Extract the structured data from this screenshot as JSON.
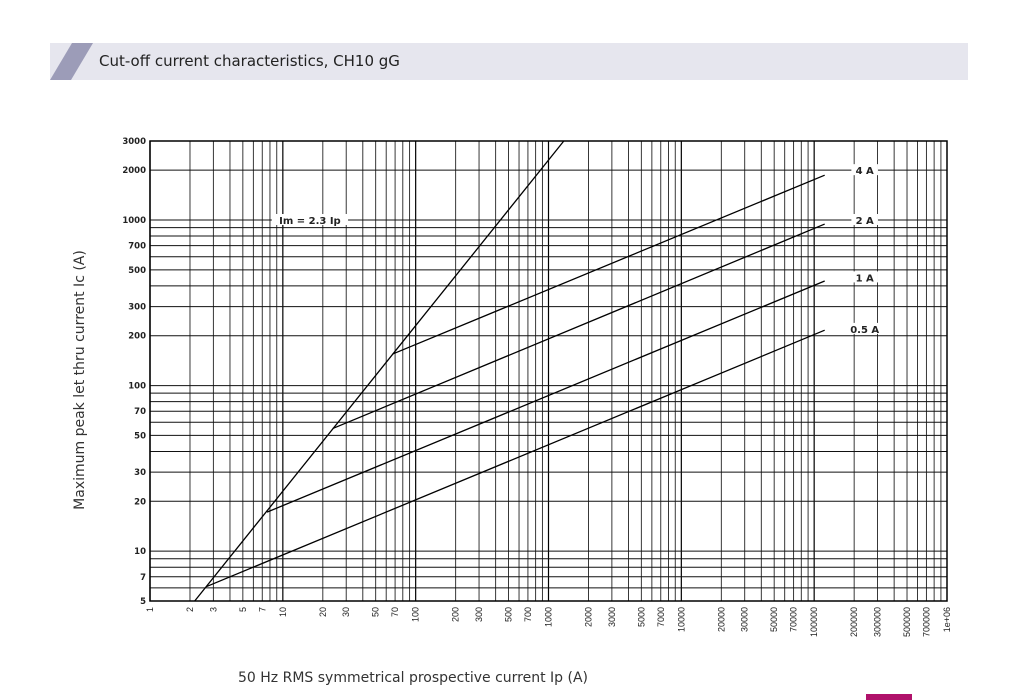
{
  "header": {
    "title": "Cut-off current characteristics, CH10 gG"
  },
  "colors": {
    "band": "#e6e6ee",
    "band_accent": "#9c9cb8",
    "logo": "#b0126b",
    "lines": "#000000"
  },
  "chart_data": {
    "type": "line",
    "title": "Cut-off current characteristics, CH10 gG",
    "xlabel": "50 Hz RMS symmetrical prospective current Ip (A)",
    "ylabel": "Maximum peak let thru current Ic (A)",
    "xscale": "log",
    "yscale": "log",
    "xlim": [
      1,
      1000000
    ],
    "ylim": [
      5,
      3000
    ],
    "grid": true,
    "xticks": [
      "1",
      "2",
      "3",
      "5",
      "7",
      "10",
      "20",
      "30",
      "50",
      "70",
      "100",
      "200",
      "300",
      "500",
      "700",
      "1000",
      "2000",
      "3000",
      "5000",
      "7000",
      "10000",
      "20000",
      "30000",
      "50000",
      "70000",
      "100000",
      "200000",
      "300000",
      "500000",
      "700000",
      "1e+06"
    ],
    "xtick_values": [
      1,
      2,
      3,
      5,
      7,
      10,
      20,
      30,
      50,
      70,
      100,
      200,
      300,
      500,
      700,
      1000,
      2000,
      3000,
      5000,
      7000,
      10000,
      20000,
      30000,
      50000,
      70000,
      100000,
      200000,
      300000,
      500000,
      700000,
      1000000
    ],
    "yticks": [
      "3000",
      "2000",
      "1000",
      "700",
      "500",
      "300",
      "200",
      "100",
      "70",
      "50",
      "30",
      "20",
      "10",
      "7",
      "5"
    ],
    "ytick_values": [
      3000,
      2000,
      1000,
      700,
      500,
      300,
      200,
      100,
      70,
      50,
      30,
      20,
      10,
      7,
      5
    ],
    "series": [
      {
        "name": "Im = 2.3 Ip",
        "x": [
          2.17,
          1304
        ],
        "y": [
          5,
          3000
        ],
        "label_at": [
          16,
          1000
        ]
      },
      {
        "name": "4 A",
        "x": [
          67,
          120000
        ],
        "y": [
          155,
          1865
        ],
        "label_at": [
          240000,
          2000
        ]
      },
      {
        "name": "2 A",
        "x": [
          23.7,
          120000
        ],
        "y": [
          55,
          945
        ],
        "label_at": [
          240000,
          1000
        ]
      },
      {
        "name": "1 A",
        "x": [
          7.6,
          120000
        ],
        "y": [
          17.2,
          428
        ],
        "label_at": [
          240000,
          450
        ]
      },
      {
        "name": "0.5 A",
        "x": [
          2.65,
          120000
        ],
        "y": [
          6.1,
          216
        ],
        "label_at": [
          240000,
          220
        ]
      }
    ]
  }
}
